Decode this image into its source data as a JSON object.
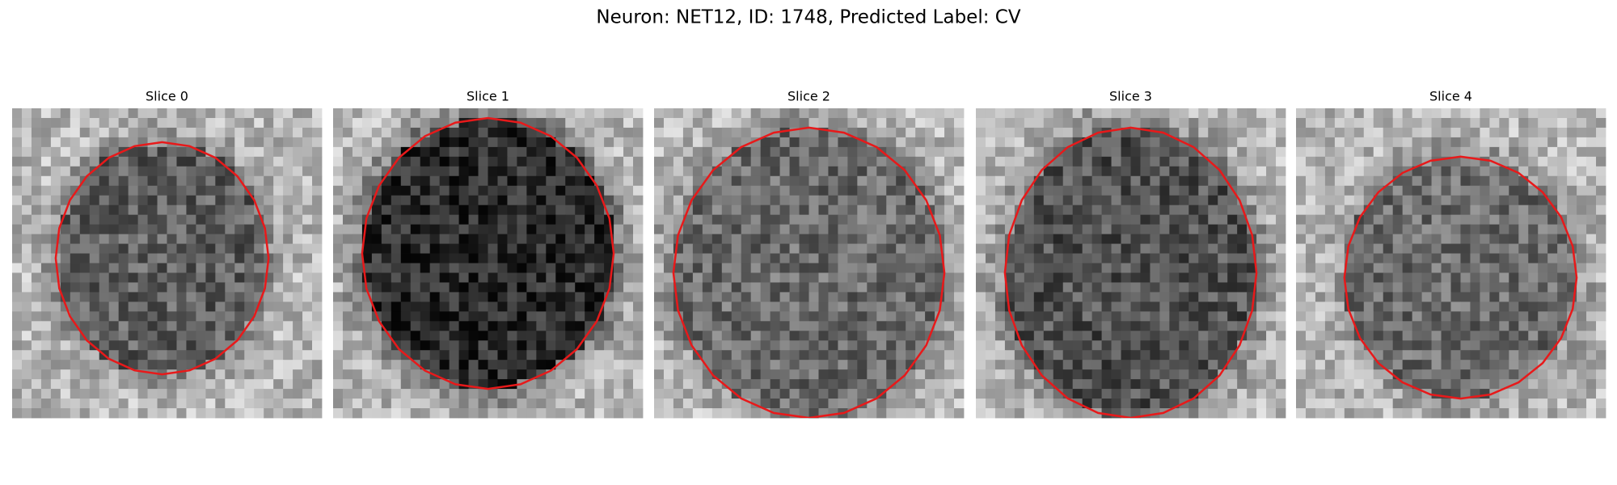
{
  "title": "Neuron: NET12, ID: 1748, Predicted Label: CV",
  "panels": [
    {
      "title": "Slice 0"
    },
    {
      "title": "Slice 1"
    },
    {
      "title": "Slice 2"
    },
    {
      "title": "Slice 3"
    },
    {
      "title": "Slice 4"
    }
  ]
}
